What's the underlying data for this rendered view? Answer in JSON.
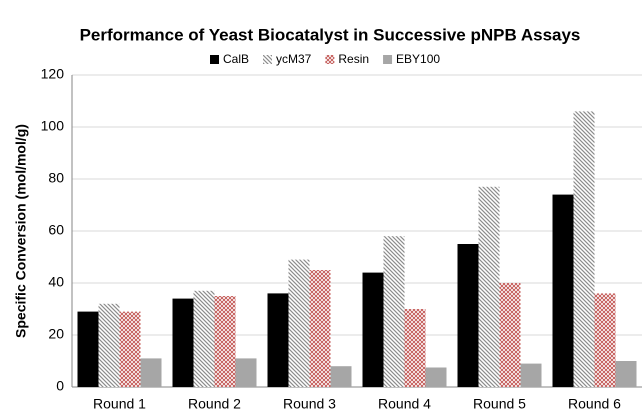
{
  "chart_data": {
    "type": "bar",
    "title": "Performance of Yeast Biocatalyst in Successive pNPB Assays",
    "y_label": "Specific Conversion (mol/mol/g)",
    "categories": [
      "Round 1",
      "Round 2",
      "Round 3",
      "Round 4",
      "Round 5",
      "Round 6"
    ],
    "series": [
      {
        "name": "CalB",
        "color": "#000000",
        "pattern": "solid",
        "values": [
          29,
          34,
          36,
          44,
          55,
          74
        ]
      },
      {
        "name": "ycM37",
        "color": "#8c8c8c",
        "pattern": "diagonal",
        "values": [
          32,
          37,
          49,
          58,
          77,
          106
        ]
      },
      {
        "name": "Resin",
        "color": "#c0504d",
        "pattern": "crosshatch",
        "values": [
          29,
          35,
          45,
          30,
          40,
          36
        ]
      },
      {
        "name": "EBY100",
        "color": "#a6a6a6",
        "pattern": "solid",
        "values": [
          11,
          11,
          8,
          7.5,
          9,
          10
        ]
      }
    ],
    "ylim": [
      0,
      120
    ],
    "yticks": [
      0,
      20,
      40,
      60,
      80,
      100,
      120
    ],
    "grid": true,
    "legend": "top"
  }
}
